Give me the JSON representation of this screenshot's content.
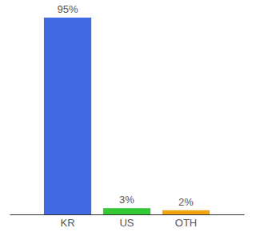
{
  "chart_data": {
    "type": "bar",
    "categories": [
      "KR",
      "US",
      "OTH"
    ],
    "values": [
      95,
      3,
      2
    ],
    "value_labels": [
      "95%",
      "3%",
      "2%"
    ],
    "colors": [
      "#4169e1",
      "#34c934",
      "#f2a30f"
    ],
    "data_labels": true,
    "tick_labels": "x"
  }
}
